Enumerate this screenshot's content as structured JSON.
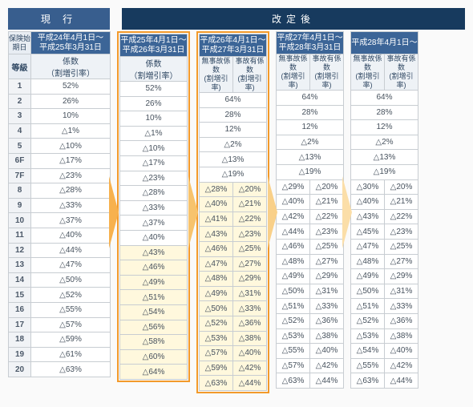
{
  "headers": {
    "current": "現 行",
    "revised": "改定後"
  },
  "labels": {
    "insStart": "保険始期日",
    "grade": "等級",
    "coef": "係数",
    "coefSub": "（割増引率）",
    "noAccident": "無事故係数",
    "withAccident": "事故有係数",
    "rate": "(割増引率)"
  },
  "periods": [
    "平成24年4月1日～\n平成25年3月31日",
    "平成25年4月1日～\n平成26年3月31日",
    "平成26年4月1日～\n平成27年3月31日",
    "平成27年4月1日～\n平成28年3月31日",
    "平成28年4月1日～"
  ],
  "grades": [
    "1",
    "2",
    "3",
    "4",
    "5",
    "6F",
    "7F",
    "8",
    "9",
    "10",
    "11",
    "12",
    "13",
    "14",
    "15",
    "16",
    "17",
    "18",
    "19",
    "20"
  ],
  "col1": {
    "highlightFrom": -1,
    "vals": [
      "52%",
      "26%",
      "10%",
      "△1%",
      "△10%",
      "△17%",
      "△23%",
      "△28%",
      "△33%",
      "△37%",
      "△40%",
      "△44%",
      "△47%",
      "△50%",
      "△52%",
      "△55%",
      "△57%",
      "△59%",
      "△61%",
      "△63%"
    ]
  },
  "col2": {
    "highlightFrom": 11,
    "vals": [
      "52%",
      "26%",
      "10%",
      "△1%",
      "△10%",
      "△17%",
      "△23%",
      "△28%",
      "△33%",
      "△37%",
      "△40%",
      "△43%",
      "△46%",
      "△49%",
      "△51%",
      "△54%",
      "△56%",
      "△58%",
      "△60%",
      "△64%"
    ]
  },
  "col3": {
    "highlightFrom": 6,
    "nacc": [
      "64%",
      "28%",
      "12%",
      "△2%",
      "△13%",
      "△19%",
      "△28%",
      "△40%",
      "△41%",
      "△43%",
      "△46%",
      "△47%",
      "△48%",
      "△49%",
      "△50%",
      "△52%",
      "△53%",
      "△57%",
      "△59%",
      "△63%"
    ],
    "acc": [
      "",
      "",
      "",
      "",
      "",
      "",
      "△20%",
      "△21%",
      "△22%",
      "△23%",
      "△25%",
      "△27%",
      "△29%",
      "△31%",
      "△33%",
      "△36%",
      "△38%",
      "△40%",
      "△42%",
      "△44%"
    ]
  },
  "col4": {
    "highlightFrom": -1,
    "nacc": [
      "64%",
      "28%",
      "12%",
      "△2%",
      "△13%",
      "△19%",
      "△29%",
      "△40%",
      "△42%",
      "△44%",
      "△46%",
      "△48%",
      "△49%",
      "△50%",
      "△51%",
      "△52%",
      "△53%",
      "△55%",
      "△57%",
      "△63%"
    ],
    "acc": [
      "",
      "",
      "",
      "",
      "",
      "",
      "△20%",
      "△21%",
      "△22%",
      "△23%",
      "△25%",
      "△27%",
      "△29%",
      "△31%",
      "△33%",
      "△36%",
      "△38%",
      "△40%",
      "△42%",
      "△44%"
    ]
  },
  "col5": {
    "highlightFrom": -1,
    "nacc": [
      "64%",
      "28%",
      "12%",
      "△2%",
      "△13%",
      "△19%",
      "△30%",
      "△40%",
      "△43%",
      "△45%",
      "△47%",
      "△48%",
      "△49%",
      "△50%",
      "△51%",
      "△52%",
      "△53%",
      "△54%",
      "△55%",
      "△63%"
    ],
    "acc": [
      "",
      "",
      "",
      "",
      "",
      "",
      "△20%",
      "△21%",
      "△22%",
      "△23%",
      "△25%",
      "△27%",
      "△29%",
      "△31%",
      "△33%",
      "△36%",
      "△38%",
      "△40%",
      "△42%",
      "△44%"
    ]
  },
  "style": {
    "highlight_bg": "#fff8dd",
    "orange_border": "#f39a2b",
    "header_dark": "#173a5e",
    "header_mid": "#385e8e",
    "period_bg": "#3c6597"
  }
}
